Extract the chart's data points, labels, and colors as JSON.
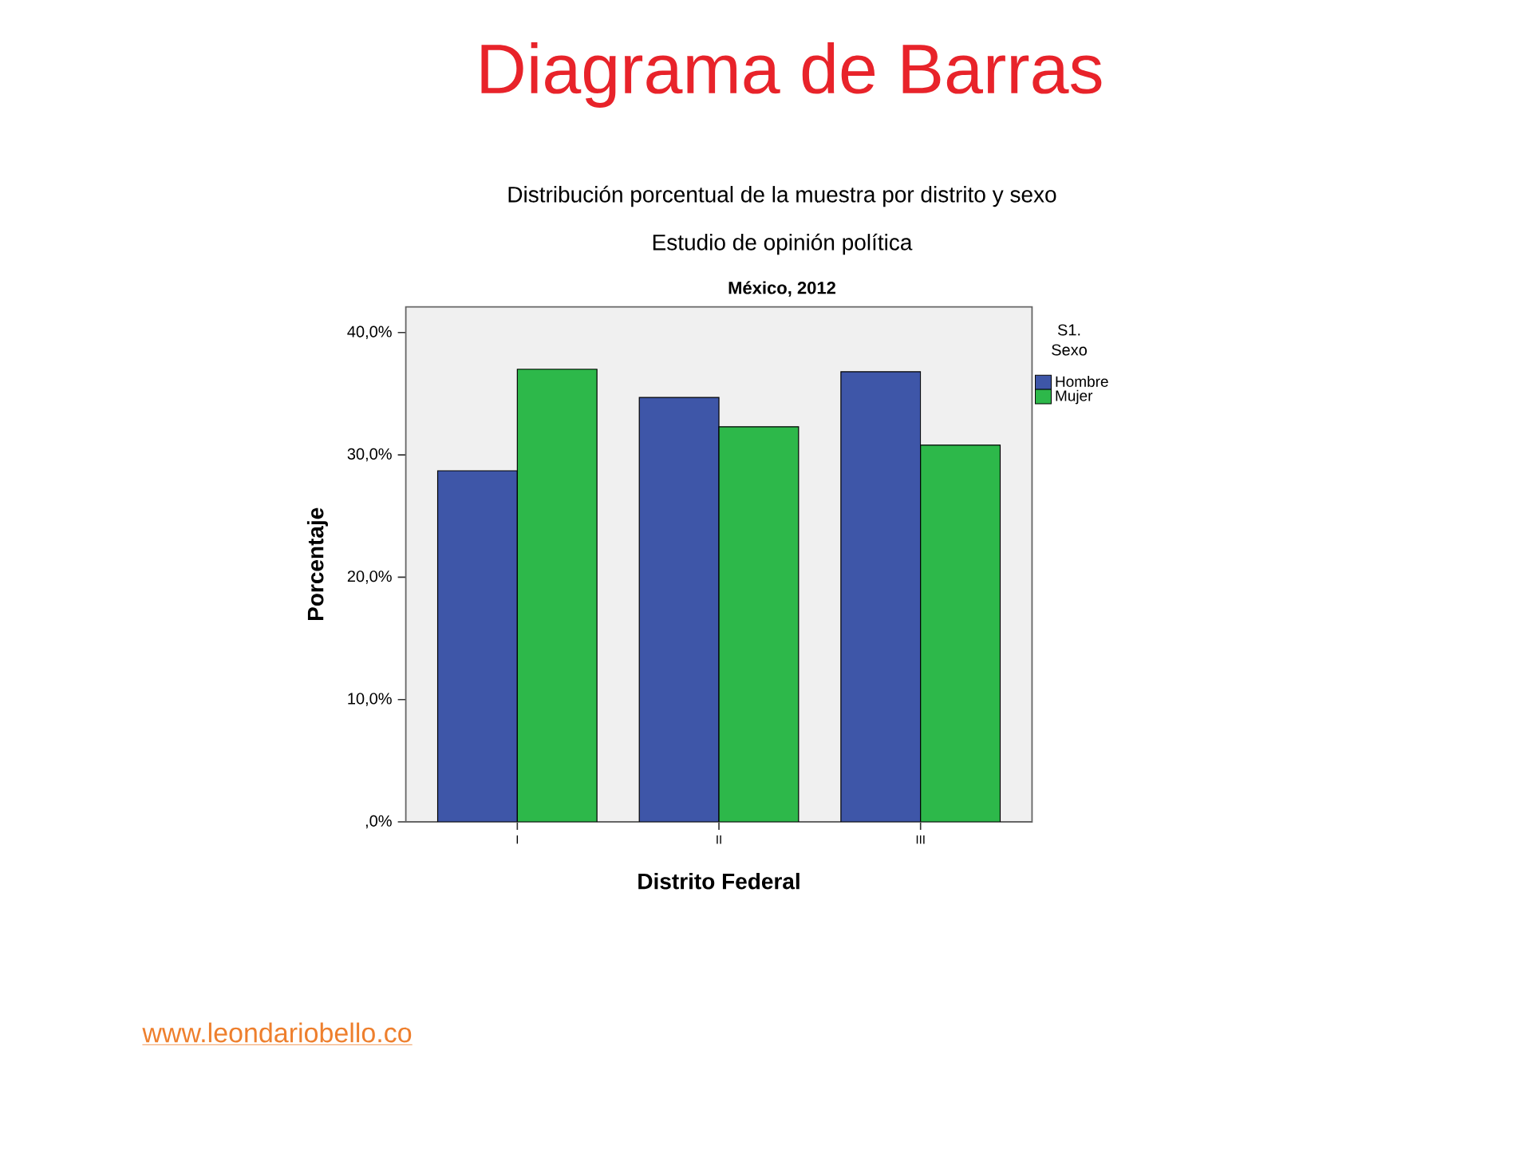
{
  "chart_data": {
    "type": "bar",
    "title": "Diagrama de Barras",
    "subtitle": "Distribución porcentual de la muestra por distrito y sexo",
    "annotations": [
      "Estudio de opinión política",
      "México, 2012",
      "www.leondariobello.co"
    ],
    "xlabel": "Distrito Federal",
    "ylabel": "Porcentaje",
    "legend_title": "S1. Sexo",
    "legend": "top right",
    "categories": [
      "I",
      "II",
      "III"
    ],
    "series": [
      {
        "name": "Hombre",
        "color": "#3e56a8",
        "values": [
          28.7,
          34.7,
          36.8
        ]
      },
      {
        "name": "Mujer",
        "color": "#2db84a",
        "values": [
          37.0,
          32.3,
          30.8
        ]
      }
    ],
    "ylim": [
      0,
      42.1
    ],
    "yticks": [
      {
        "value": 0,
        "label": ",0%"
      },
      {
        "value": 10,
        "label": "10,0%"
      },
      {
        "value": 20,
        "label": "20,0%"
      },
      {
        "value": 30,
        "label": "30,0%"
      },
      {
        "value": 40,
        "label": "40,0%"
      }
    ]
  }
}
